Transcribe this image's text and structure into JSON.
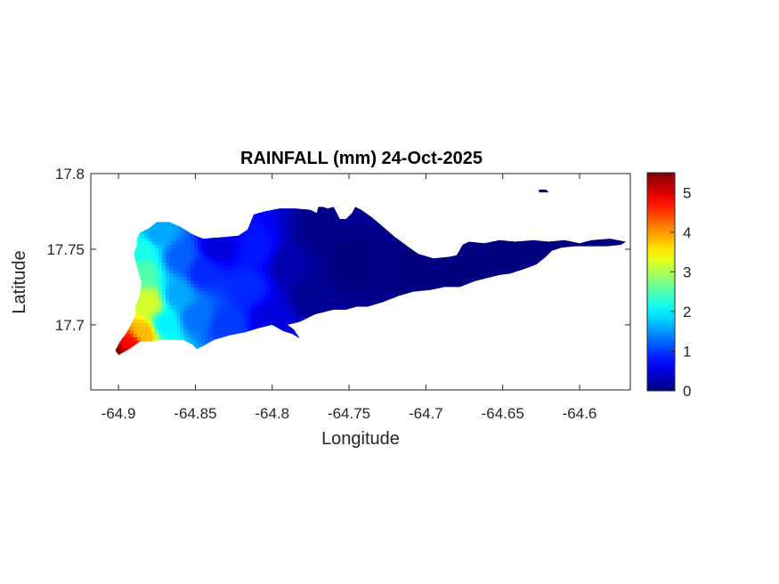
{
  "chart_data": {
    "type": "heatmap",
    "title": "RAINFALL (mm) 24-Oct-2025",
    "xlabel": "Longitude",
    "ylabel": "Latitude",
    "xlim": [
      -64.918,
      -64.567
    ],
    "ylim": [
      17.657,
      17.8
    ],
    "xticks": [
      -64.9,
      -64.85,
      -64.8,
      -64.75,
      -64.7,
      -64.65,
      -64.6
    ],
    "xtick_labels": [
      "-64.9",
      "-64.85",
      "-64.8",
      "-64.75",
      "-64.7",
      "-64.65",
      "-64.6"
    ],
    "yticks": [
      17.7,
      17.75,
      17.8
    ],
    "ytick_labels": [
      "17.7",
      "17.75",
      "17.8"
    ],
    "colorbar": {
      "colormap": "jet",
      "clim": [
        0,
        5.5
      ],
      "ticks": [
        0,
        1,
        2,
        3,
        4,
        5
      ],
      "tick_labels": [
        "0",
        "1",
        "2",
        "3",
        "4",
        "5"
      ]
    },
    "grid": false,
    "island_outline": [
      [
        -64.9,
        17.68
      ],
      [
        -64.893,
        17.684
      ],
      [
        -64.886,
        17.689
      ],
      [
        -64.88,
        17.689
      ],
      [
        -64.873,
        17.69
      ],
      [
        -64.866,
        17.69
      ],
      [
        -64.858,
        17.69
      ],
      [
        -64.852,
        17.687
      ],
      [
        -64.849,
        17.684
      ],
      [
        -64.845,
        17.686
      ],
      [
        -64.838,
        17.69
      ],
      [
        -64.828,
        17.693
      ],
      [
        -64.818,
        17.695
      ],
      [
        -64.808,
        17.698
      ],
      [
        -64.8,
        17.7
      ],
      [
        -64.793,
        17.696
      ],
      [
        -64.787,
        17.694
      ],
      [
        -64.782,
        17.691
      ],
      [
        -64.786,
        17.697
      ],
      [
        -64.79,
        17.7
      ],
      [
        -64.782,
        17.702
      ],
      [
        -64.772,
        17.707
      ],
      [
        -64.76,
        17.71
      ],
      [
        -64.752,
        17.71
      ],
      [
        -64.745,
        17.712
      ],
      [
        -64.738,
        17.712
      ],
      [
        -64.728,
        17.715
      ],
      [
        -64.718,
        17.719
      ],
      [
        -64.708,
        17.722
      ],
      [
        -64.697,
        17.723
      ],
      [
        -64.688,
        17.725
      ],
      [
        -64.678,
        17.725
      ],
      [
        -64.668,
        17.729
      ],
      [
        -64.66,
        17.731
      ],
      [
        -64.652,
        17.733
      ],
      [
        -64.645,
        17.734
      ],
      [
        -64.636,
        17.737
      ],
      [
        -64.628,
        17.74
      ],
      [
        -64.622,
        17.745
      ],
      [
        -64.618,
        17.749
      ],
      [
        -64.612,
        17.751
      ],
      [
        -64.603,
        17.752
      ],
      [
        -64.592,
        17.752
      ],
      [
        -64.582,
        17.752
      ],
      [
        -64.573,
        17.753
      ],
      [
        -64.57,
        17.755
      ],
      [
        -64.58,
        17.757
      ],
      [
        -64.592,
        17.756
      ],
      [
        -64.6,
        17.754
      ],
      [
        -64.61,
        17.756
      ],
      [
        -64.62,
        17.755
      ],
      [
        -64.63,
        17.756
      ],
      [
        -64.642,
        17.755
      ],
      [
        -64.652,
        17.756
      ],
      [
        -64.662,
        17.754
      ],
      [
        -64.672,
        17.755
      ],
      [
        -64.676,
        17.753
      ],
      [
        -64.68,
        17.746
      ],
      [
        -64.685,
        17.745
      ],
      [
        -64.695,
        17.744
      ],
      [
        -64.705,
        17.747
      ],
      [
        -64.712,
        17.752
      ],
      [
        -64.72,
        17.758
      ],
      [
        -64.728,
        17.765
      ],
      [
        -64.735,
        17.771
      ],
      [
        -64.742,
        17.776
      ],
      [
        -64.746,
        17.778
      ],
      [
        -64.748,
        17.774
      ],
      [
        -64.752,
        17.77
      ],
      [
        -64.756,
        17.77
      ],
      [
        -64.757,
        17.772
      ],
      [
        -64.76,
        17.778
      ],
      [
        -64.764,
        17.777
      ],
      [
        -64.767,
        17.778
      ],
      [
        -64.77,
        17.778
      ],
      [
        -64.771,
        17.774
      ],
      [
        -64.775,
        17.776
      ],
      [
        -64.785,
        17.777
      ],
      [
        -64.795,
        17.777
      ],
      [
        -64.805,
        17.775
      ],
      [
        -64.812,
        17.773
      ],
      [
        -64.816,
        17.763
      ],
      [
        -64.822,
        17.759
      ],
      [
        -64.832,
        17.758
      ],
      [
        -64.845,
        17.757
      ],
      [
        -64.852,
        17.76
      ],
      [
        -64.86,
        17.765
      ],
      [
        -64.867,
        17.768
      ],
      [
        -64.875,
        17.768
      ],
      [
        -64.88,
        17.764
      ],
      [
        -64.886,
        17.761
      ],
      [
        -64.888,
        17.757
      ],
      [
        -64.888,
        17.753
      ],
      [
        -64.89,
        17.747
      ],
      [
        -64.889,
        17.742
      ],
      [
        -64.887,
        17.735
      ],
      [
        -64.885,
        17.728
      ],
      [
        -64.886,
        17.72
      ],
      [
        -64.889,
        17.712
      ],
      [
        -64.889,
        17.706
      ],
      [
        -64.893,
        17.698
      ],
      [
        -64.896,
        17.693
      ],
      [
        -64.899,
        17.689
      ],
      [
        -64.902,
        17.683
      ]
    ],
    "islet_outline": [
      [
        -64.626,
        17.789
      ],
      [
        -64.622,
        17.789
      ],
      [
        -64.621,
        17.788
      ],
      [
        -64.626,
        17.788
      ]
    ],
    "rainfall_field": {
      "description_points": [
        {
          "lon": -64.9,
          "lat": 17.68,
          "mm": 5.5
        },
        {
          "lon": -64.892,
          "lat": 17.686,
          "mm": 4.8
        },
        {
          "lon": -64.883,
          "lat": 17.695,
          "mm": 3.8
        },
        {
          "lon": -64.88,
          "lat": 17.715,
          "mm": 3.2
        },
        {
          "lon": -64.884,
          "lat": 17.735,
          "mm": 2.5
        },
        {
          "lon": -64.884,
          "lat": 17.75,
          "mm": 2.2
        },
        {
          "lon": -64.875,
          "lat": 17.76,
          "mm": 1.6
        },
        {
          "lon": -64.87,
          "lat": 17.7,
          "mm": 2.0
        },
        {
          "lon": -64.862,
          "lat": 17.72,
          "mm": 1.6
        },
        {
          "lon": -64.86,
          "lat": 17.745,
          "mm": 1.2
        },
        {
          "lon": -64.85,
          "lat": 17.705,
          "mm": 1.3
        },
        {
          "lon": -64.845,
          "lat": 17.735,
          "mm": 0.9
        },
        {
          "lon": -64.835,
          "lat": 17.752,
          "mm": 0.5
        },
        {
          "lon": -64.83,
          "lat": 17.7,
          "mm": 1.0
        },
        {
          "lon": -64.815,
          "lat": 17.725,
          "mm": 0.9
        },
        {
          "lon": -64.81,
          "lat": 17.75,
          "mm": 0.8
        },
        {
          "lon": -64.8,
          "lat": 17.705,
          "mm": 0.5
        },
        {
          "lon": -64.79,
          "lat": 17.74,
          "mm": 0.25
        },
        {
          "lon": -64.775,
          "lat": 17.72,
          "mm": 0.1
        },
        {
          "lon": -64.77,
          "lat": 17.76,
          "mm": 0.05
        },
        {
          "lon": -64.75,
          "lat": 17.74,
          "mm": 0.0
        },
        {
          "lon": -64.7,
          "lat": 17.735,
          "mm": 0.0
        },
        {
          "lon": -64.65,
          "lat": 17.745,
          "mm": 0.0
        },
        {
          "lon": -64.6,
          "lat": 17.752,
          "mm": 0.0
        }
      ]
    }
  }
}
